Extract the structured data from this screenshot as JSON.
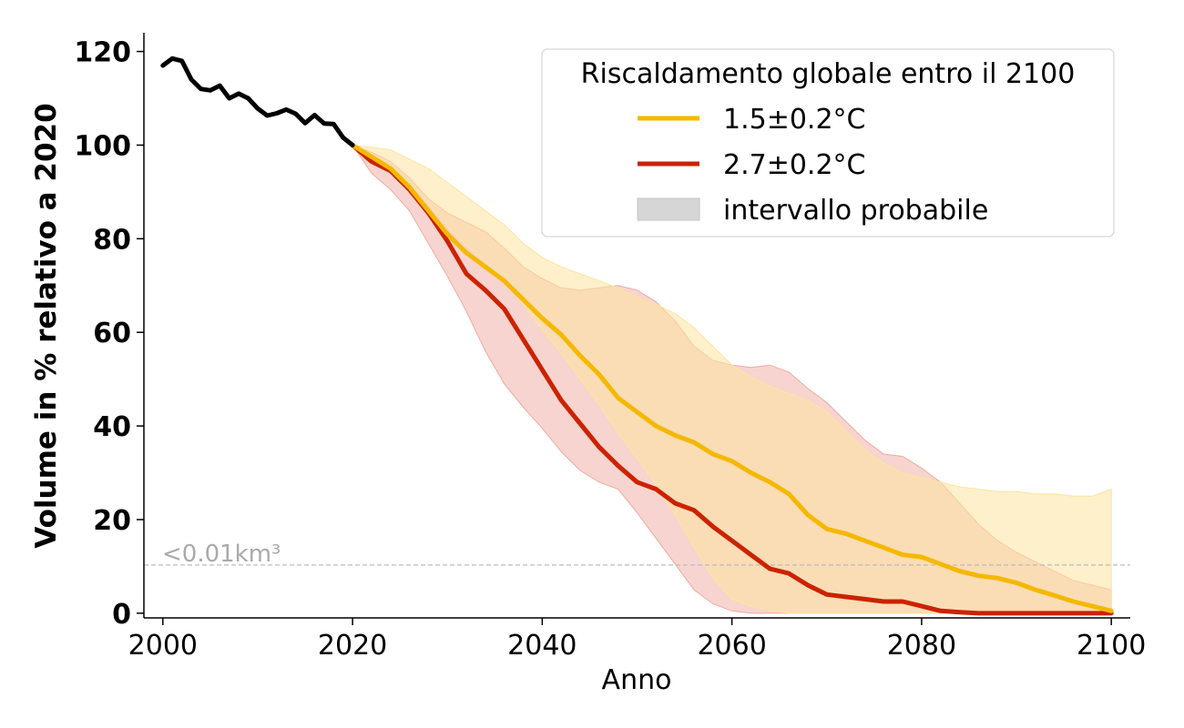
{
  "chart_data": {
    "type": "area",
    "xlabel": "Anno",
    "ylabel": "Volume in % relativo a 2020",
    "xlim": [
      1998,
      2102
    ],
    "ylim": [
      -1,
      124
    ],
    "xticks": [
      2000,
      2020,
      2040,
      2060,
      2080,
      2100
    ],
    "yticks": [
      0,
      20,
      40,
      60,
      80,
      100,
      120
    ],
    "legend": {
      "title": "Riscaldamento globale entro il 2100",
      "placement": "top-right",
      "entries": [
        "1.5±0.2°C",
        "2.7±0.2°C",
        "intervallo probabile"
      ]
    },
    "annotation": {
      "text": "<0.01km³",
      "y": 10.3
    },
    "observed": {
      "color": "#000000",
      "x": [
        2000,
        2001,
        2002,
        2003,
        2004,
        2005,
        2006,
        2007,
        2008,
        2009,
        2010,
        2011,
        2012,
        2013,
        2014,
        2015,
        2016,
        2017,
        2018,
        2019,
        2020
      ],
      "y": [
        117,
        118.5,
        118,
        114,
        112,
        111.7,
        112.7,
        110,
        111,
        110,
        107.8,
        106.3,
        106.8,
        107.6,
        106.7,
        104.7,
        106.4,
        104.6,
        104.5,
        101.6,
        100
      ]
    },
    "series": [
      {
        "name": "1.5±0.2°C",
        "color": "#f5b800",
        "band_color": "#fde4a0",
        "x": [
          2020,
          2022,
          2024,
          2026,
          2028,
          2030,
          2032,
          2034,
          2036,
          2038,
          2040,
          2042,
          2044,
          2046,
          2048,
          2050,
          2052,
          2054,
          2056,
          2058,
          2060,
          2062,
          2064,
          2066,
          2068,
          2070,
          2072,
          2074,
          2076,
          2078,
          2080,
          2082,
          2084,
          2086,
          2088,
          2090,
          2092,
          2094,
          2096,
          2098,
          2100
        ],
        "y": [
          100,
          97.5,
          95,
          91,
          86,
          81,
          77,
          74,
          71,
          67,
          63,
          59.5,
          55,
          51,
          46,
          43,
          40,
          38,
          36.5,
          34,
          32.5,
          30,
          28,
          25.5,
          21,
          18,
          17,
          15.5,
          14,
          12.5,
          12,
          10.5,
          9,
          8,
          7.5,
          6.5,
          5,
          3.8,
          2.5,
          1.5,
          0.5
        ],
        "low": [
          100,
          97.5,
          95.5,
          92,
          87.5,
          82.5,
          78.5,
          75,
          71.5,
          66,
          60.5,
          55.5,
          50,
          44.5,
          38.5,
          33,
          27.5,
          21,
          14,
          7.5,
          3,
          1.5,
          0.5,
          0,
          0,
          0,
          0,
          0,
          0,
          0,
          0,
          0,
          0,
          0,
          0,
          0,
          0,
          0,
          0,
          0,
          0
        ],
        "high": [
          100,
          99.5,
          99,
          97,
          95,
          92,
          89,
          86,
          83,
          79,
          76,
          74,
          72.5,
          71,
          69.5,
          67.5,
          66,
          64,
          61,
          57,
          53,
          50.5,
          48.5,
          47,
          45.5,
          43,
          39,
          35,
          32,
          30,
          29,
          28,
          27,
          26.5,
          26,
          26,
          25.5,
          25.5,
          25,
          25,
          26.5
        ]
      },
      {
        "name": "2.7±0.2°C",
        "color": "#cc2200",
        "band_color": "#f0aaa0",
        "x": [
          2020,
          2022,
          2024,
          2026,
          2028,
          2030,
          2032,
          2034,
          2036,
          2038,
          2040,
          2042,
          2044,
          2046,
          2048,
          2050,
          2052,
          2054,
          2056,
          2058,
          2060,
          2062,
          2064,
          2066,
          2068,
          2070,
          2072,
          2074,
          2076,
          2078,
          2080,
          2082,
          2084,
          2086,
          2088,
          2090,
          2092,
          2094,
          2096,
          2098,
          2100
        ],
        "y": [
          100,
          96.5,
          94.5,
          90.5,
          85.5,
          79.5,
          72.5,
          69,
          65,
          58.5,
          52,
          45.5,
          40.5,
          35.5,
          31.5,
          28,
          26.5,
          23.5,
          22,
          18.5,
          15.5,
          12.5,
          9.5,
          8.5,
          6,
          4,
          3.5,
          3,
          2.5,
          2.5,
          1.5,
          0.5,
          0.2,
          0,
          0,
          0,
          0,
          0,
          0,
          0,
          0
        ],
        "low": [
          100,
          94,
          90.5,
          86,
          79,
          72,
          64.5,
          56,
          49,
          44,
          39.5,
          34.5,
          30.5,
          28,
          26.5,
          21.5,
          16,
          10.5,
          5,
          2,
          0.5,
          0,
          0,
          0,
          0,
          0,
          0,
          0,
          0,
          0,
          0,
          0,
          0,
          0,
          0,
          0,
          0,
          0,
          0,
          0,
          0
        ],
        "high": [
          100,
          98.5,
          96.5,
          93,
          88.5,
          85.5,
          83.5,
          81.5,
          78,
          74,
          71.5,
          69.5,
          69,
          69.5,
          70,
          69,
          66.5,
          62.5,
          57,
          54,
          53,
          52.5,
          53,
          51.5,
          48,
          45,
          41,
          37,
          34,
          33.5,
          31,
          28,
          23.5,
          19,
          15.5,
          13,
          11,
          9,
          7,
          6,
          5
        ]
      }
    ]
  }
}
